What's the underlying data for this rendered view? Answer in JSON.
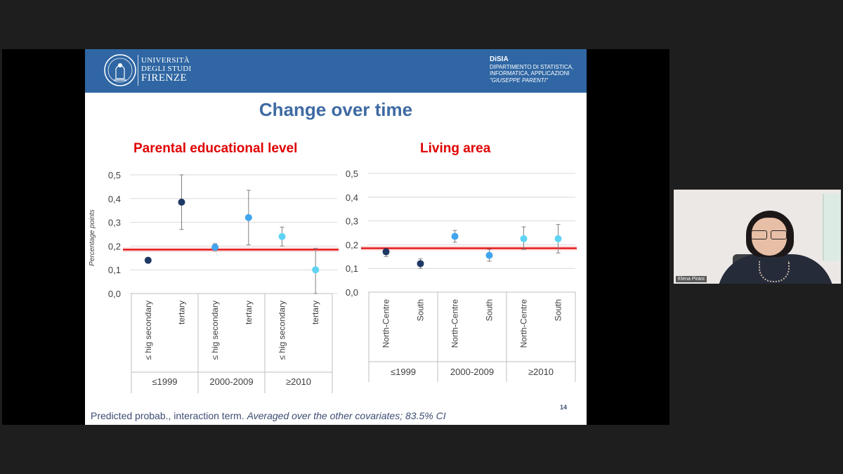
{
  "colors": {
    "header_blue": "#2f66a3",
    "title_blue": "#3e6aa3",
    "chart_title_red": "#e00000",
    "reference_line": "#e00000",
    "dark_navy": "#1f3864",
    "medium_blue": "#41a5ee",
    "light_cyan": "#5fd3f3"
  },
  "header": {
    "university": {
      "line1": "UNIVERSITÀ",
      "line2": "DEGLI STUDI",
      "line3": "FIRENZE",
      "seal_icon": "university-seal-icon"
    },
    "department": {
      "name": "DiSIA",
      "line1": "DIPARTIMENTO DI STATISTICA,",
      "line2": "INFORMATICA, APPLICAZIONI",
      "line3": "\"GIUSEPPE PARENTI\""
    }
  },
  "slide": {
    "title": "Change over time",
    "footer_plain": "Predicted probab., interaction term. ",
    "footer_italic": "Averaged over the other covariates; 83.5% CI",
    "page_number": "14"
  },
  "video": {
    "participant_name": "Elena Pirani"
  },
  "chart_data": [
    {
      "type": "scatter",
      "title": "Parental educational level",
      "ylabel": "Percentage points",
      "ylim": [
        0,
        0.5
      ],
      "yticks": [
        "0,0",
        "0,1",
        "0,2",
        "0,3",
        "0,4",
        "0,5"
      ],
      "reference_line": 0.185,
      "groups": [
        "≤1999",
        "2000-2009",
        "≥2010"
      ],
      "categories": [
        "≤ hig secondary",
        "tertary",
        "≤ hig secondary",
        "tertary",
        "≤ hig secondary",
        "tertary"
      ],
      "series": [
        {
          "name": "≤1999",
          "color": "#1f3864",
          "points": [
            {
              "value": 0.14,
              "ci_low": 0.13,
              "ci_high": 0.15
            },
            {
              "value": 0.385,
              "ci_low": 0.27,
              "ci_high": 0.5
            }
          ]
        },
        {
          "name": "2000-2009",
          "color": "#41a5ee",
          "points": [
            {
              "value": 0.195,
              "ci_low": 0.18,
              "ci_high": 0.21
            },
            {
              "value": 0.32,
              "ci_low": 0.205,
              "ci_high": 0.435
            }
          ]
        },
        {
          "name": "≥2010",
          "color": "#5fd3f3",
          "points": [
            {
              "value": 0.24,
              "ci_low": 0.2,
              "ci_high": 0.28
            },
            {
              "value": 0.1,
              "ci_low": 0.0,
              "ci_high": 0.19
            }
          ]
        }
      ]
    },
    {
      "type": "scatter",
      "title": "Living area",
      "ylim": [
        0,
        0.5
      ],
      "yticks": [
        "0,0",
        "0,1",
        "0,2",
        "0,3",
        "0,4",
        "0,5"
      ],
      "reference_line": 0.185,
      "groups": [
        "≤1999",
        "2000-2009",
        "≥2010"
      ],
      "categories": [
        "North-Centre",
        "South",
        "North-Centre",
        "South",
        "North-Centre",
        "South"
      ],
      "series": [
        {
          "name": "≤1999",
          "color": "#1f3864",
          "points": [
            {
              "value": 0.17,
              "ci_low": 0.15,
              "ci_high": 0.18
            },
            {
              "value": 0.12,
              "ci_low": 0.1,
              "ci_high": 0.14
            }
          ]
        },
        {
          "name": "2000-2009",
          "color": "#41a5ee",
          "points": [
            {
              "value": 0.235,
              "ci_low": 0.21,
              "ci_high": 0.26
            },
            {
              "value": 0.155,
              "ci_low": 0.13,
              "ci_high": 0.18
            }
          ]
        },
        {
          "name": "≥2010",
          "color": "#5fd3f3",
          "points": [
            {
              "value": 0.225,
              "ci_low": 0.18,
              "ci_high": 0.275
            },
            {
              "value": 0.225,
              "ci_low": 0.165,
              "ci_high": 0.285
            }
          ]
        }
      ]
    }
  ]
}
